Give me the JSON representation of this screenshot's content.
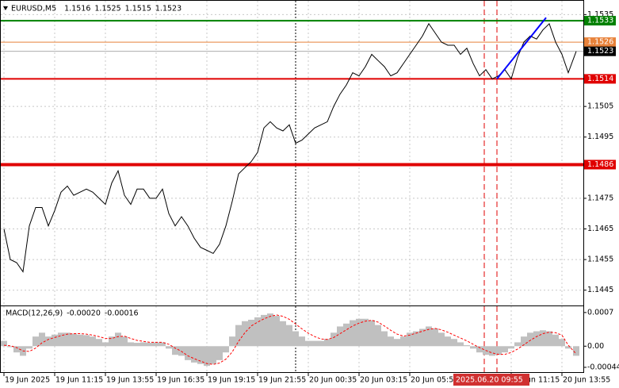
{
  "chart_data": [
    {
      "type": "line",
      "title": "EURUSD,M5",
      "ohlc": [
        1.1516,
        1.1525,
        1.1515,
        1.1523
      ],
      "color": "#000000",
      "x": [
        0,
        4,
        8,
        12,
        16,
        20,
        24,
        28,
        32,
        36,
        40,
        44,
        48,
        52,
        56,
        60,
        64,
        68,
        72,
        76,
        80,
        84,
        88,
        92,
        96,
        100,
        104,
        108,
        112,
        116,
        120,
        124,
        128,
        132,
        136,
        140,
        144,
        148,
        152,
        156,
        160,
        164,
        168,
        172,
        176,
        180,
        184,
        188,
        192,
        196,
        200,
        204,
        208,
        212,
        216,
        220,
        224,
        228,
        232,
        236,
        240,
        244,
        248,
        252,
        256,
        260,
        264,
        268,
        272,
        276,
        280,
        284,
        288,
        292,
        296,
        300,
        304,
        308,
        312,
        316,
        320,
        324,
        328,
        332,
        336,
        340,
        344,
        348,
        352,
        356,
        361
      ],
      "values": [
        1.1465,
        1.1455,
        1.1454,
        1.1451,
        1.1466,
        1.1472,
        1.1472,
        1.1466,
        1.1471,
        1.1477,
        1.1479,
        1.1476,
        1.1477,
        1.1478,
        1.1477,
        1.1475,
        1.1473,
        1.148,
        1.1484,
        1.1476,
        1.1473,
        1.1478,
        1.1478,
        1.1475,
        1.1475,
        1.1478,
        1.147,
        1.1466,
        1.1469,
        1.1466,
        1.1462,
        1.1459,
        1.1458,
        1.1457,
        1.146,
        1.1466,
        1.1474,
        1.1483,
        1.1485,
        1.1487,
        1.149,
        1.1498,
        1.15,
        1.1498,
        1.1497,
        1.1499,
        1.1493,
        1.1494,
        1.1496,
        1.1498,
        1.1499,
        1.15,
        1.1505,
        1.1509,
        1.1512,
        1.1516,
        1.1515,
        1.1518,
        1.1522,
        1.152,
        1.1518,
        1.1515,
        1.1516,
        1.1519,
        1.1522,
        1.1525,
        1.1528,
        1.1532,
        1.1529,
        1.1526,
        1.1525,
        1.1525,
        1.1522,
        1.1524,
        1.1519,
        1.1515,
        1.1517,
        1.1514,
        1.1515,
        1.1517,
        1.1514,
        1.1521,
        1.1526,
        1.1528,
        1.1527,
        1.153,
        1.1532,
        1.1526,
        1.1522,
        1.1516,
        1.1523
      ],
      "xlim": [
        -2.5,
        365.5
      ],
      "ylim": [
        1.144,
        1.15395
      ],
      "yticks": [
        1.1535,
        1.1505,
        1.1495,
        1.1475,
        1.1465,
        1.1455,
        1.1445
      ],
      "xticks": [
        {
          "value": 0,
          "label": "19 Jun 2025"
        },
        {
          "value": 32,
          "label": "19 Jun 11:15"
        },
        {
          "value": 64,
          "label": "19 Jun 13:55"
        },
        {
          "value": 96,
          "label": "19 Jun 16:35"
        },
        {
          "value": 128,
          "label": "19 Jun 19:15"
        },
        {
          "value": 160,
          "label": "19 Jun 21:55"
        },
        {
          "value": 192,
          "label": "20 Jun 00:35"
        },
        {
          "value": 224,
          "label": "20 Jun 03:15"
        },
        {
          "value": 256,
          "label": "20 Jun 05:55"
        },
        {
          "value": 320,
          "label": "20 Jun 11:15"
        },
        {
          "value": 352,
          "label": "20 Jun 13:55"
        }
      ],
      "grid": true,
      "levels": [
        {
          "value": 1.1533,
          "color": "#008000"
        },
        {
          "value": 1.1526,
          "color": "#e8823a"
        },
        {
          "value": 1.1523,
          "color": "#000000"
        },
        {
          "value": 1.1514,
          "color": "#e00000"
        },
        {
          "value": 1.1486,
          "color": "#e00000"
        }
      ],
      "vlines": [
        {
          "x": 184,
          "color": "#000000"
        },
        {
          "x": 303,
          "color": "#e00000"
        },
        {
          "x": 311,
          "color": "#e00000"
        }
      ],
      "trendline": {
        "x": [
          311,
          342
        ],
        "y": [
          1.1514,
          1.1534
        ],
        "color": "#0000ff"
      },
      "cursor_label": "2025.06.20 09:55"
    },
    {
      "type": "macd",
      "title": "MACD(12,26,9)",
      "macd_value": {
        "value": -0.0002,
        "label": "-0.00020"
      },
      "signal_value": {
        "value": -0.00016,
        "label": "-0.00016"
      },
      "ylim": [
        -0.00054,
        0.00083
      ],
      "yticks": [
        0.0007,
        {
          "value": 0,
          "label": "0.00"
        },
        -0.00044
      ],
      "series": [
        {
          "color": "#c0c0c0",
          "values": [
            0.00011,
            -2e-05,
            -0.00013,
            -0.0002,
            -5e-05,
            0.0002,
            0.00028,
            0.0002,
            0.00024,
            0.00028,
            0.00028,
            0.00026,
            0.00024,
            0.00023,
            0.0002,
            0.00015,
            8e-05,
            0.0002,
            0.00028,
            0.0002,
            8e-05,
            7e-05,
            8e-05,
            7e-05,
            8e-05,
            8e-05,
            -5e-05,
            -0.00018,
            -0.0002,
            -0.00029,
            -0.00034,
            -0.00037,
            -0.00041,
            -0.00037,
            -0.00029,
            -0.00013,
            0.0002,
            0.00044,
            0.00052,
            0.00055,
            0.0006,
            0.00065,
            0.00068,
            0.00063,
            0.00052,
            0.00044,
            0.00031,
            0.0002,
            0.00011,
            0.00011,
            0.00011,
            0.00015,
            0.00028,
            0.00041,
            0.00047,
            0.00054,
            0.00057,
            0.00057,
            0.00054,
            0.00044,
            0.00031,
            0.0002,
            0.00015,
            0.0002,
            0.00028,
            0.00031,
            0.00036,
            0.00041,
            0.00037,
            0.00028,
            0.0002,
            0.00015,
            8e-05,
            2e-05,
            -5e-05,
            -0.00013,
            -0.00018,
            -0.0002,
            -0.00018,
            -0.00013,
            -5e-05,
            8e-05,
            0.0002,
            0.00028,
            0.00031,
            0.00033,
            0.00031,
            0.00024,
            0.00015,
            -5e-05,
            -0.0002
          ]
        },
        {
          "color": "#ff0000",
          "values": [
            2e-05,
            1e-05,
            -3e-05,
            -0.0001,
            -0.00011,
            -4e-05,
            7e-05,
            0.00014,
            0.00018,
            0.00022,
            0.00025,
            0.00026,
            0.00026,
            0.00025,
            0.00023,
            0.0002,
            0.00016,
            0.00016,
            0.0002,
            0.00021,
            0.00016,
            0.00012,
            0.0001,
            8e-05,
            8e-05,
            8e-05,
            4e-05,
            -4e-05,
            -0.00011,
            -0.0002,
            -0.00026,
            -0.00031,
            -0.00036,
            -0.00038,
            -0.00035,
            -0.00027,
            -0.00012,
            0.0001,
            0.00028,
            0.00042,
            0.0005,
            0.00057,
            0.00062,
            0.00065,
            0.00062,
            0.00056,
            0.00046,
            0.00036,
            0.00027,
            0.0002,
            0.00015,
            0.00014,
            0.00018,
            0.00026,
            0.00034,
            0.00042,
            0.00048,
            0.00052,
            0.00054,
            0.0005,
            0.00042,
            0.00033,
            0.00025,
            0.00021,
            0.00023,
            0.00027,
            0.00031,
            0.00035,
            0.00037,
            0.00034,
            0.00029,
            0.00023,
            0.00017,
            0.00011,
            4e-05,
            -3e-05,
            -9e-05,
            -0.00014,
            -0.00017,
            -0.00017,
            -0.00013,
            -6e-05,
            3e-05,
            0.00012,
            0.0002,
            0.00026,
            0.00029,
            0.00028,
            0.00023,
            2e-05,
            -0.00016
          ]
        }
      ]
    }
  ]
}
